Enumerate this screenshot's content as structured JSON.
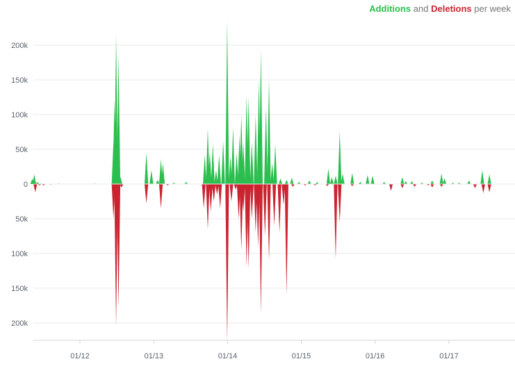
{
  "legend": {
    "additions": "Additions",
    "and": "and",
    "deletions": "Deletions",
    "suffix": "per week"
  },
  "colors": {
    "additions": "#2cbe4e",
    "deletions": "#cb2431"
  },
  "chart_data": {
    "type": "area",
    "title": "",
    "xlabel": "",
    "ylabel": "",
    "ylim": [
      -230000,
      230000
    ],
    "y_ticks": [
      {
        "v": 200000,
        "label": "200k"
      },
      {
        "v": 150000,
        "label": "150k"
      },
      {
        "v": 100000,
        "label": "100k"
      },
      {
        "v": 50000,
        "label": "50k"
      },
      {
        "v": 0,
        "label": "0"
      },
      {
        "v": -50000,
        "label": "50k"
      },
      {
        "v": -100000,
        "label": "100k"
      },
      {
        "v": -150000,
        "label": "150k"
      },
      {
        "v": -200000,
        "label": "200k"
      }
    ],
    "x_ticks": [
      "01/12",
      "01/13",
      "01/14",
      "01/15",
      "01/16",
      "01/17"
    ],
    "x_range": [
      "2011-05",
      "2017-10"
    ],
    "grid": true,
    "legend_position": "top-right",
    "series": [
      {
        "name": "Additions",
        "points": [
          [
            "2011-05-10",
            8000
          ],
          [
            "2011-05-20",
            14000
          ],
          [
            "2011-05-28",
            2000
          ],
          [
            "2011-06-05",
            3000
          ],
          [
            "2011-06-20",
            1000
          ],
          [
            "2011-09-20",
            1000
          ],
          [
            "2012-03-15",
            1000
          ],
          [
            "2012-06-15",
            60000
          ],
          [
            "2012-06-20",
            120000
          ],
          [
            "2012-06-28",
            215000
          ],
          [
            "2012-07-10",
            185000
          ],
          [
            "2012-07-20",
            10000
          ],
          [
            "2012-11-25",
            45000
          ],
          [
            "2012-12-20",
            20000
          ],
          [
            "2013-01-20",
            6000
          ],
          [
            "2013-02-05",
            36000
          ],
          [
            "2013-02-15",
            30000
          ],
          [
            "2013-04-10",
            2000
          ],
          [
            "2013-06-10",
            3000
          ],
          [
            "2013-09-10",
            42000
          ],
          [
            "2013-09-25",
            80000
          ],
          [
            "2013-10-05",
            45000
          ],
          [
            "2013-10-20",
            58000
          ],
          [
            "2013-11-05",
            20000
          ],
          [
            "2013-11-20",
            42000
          ],
          [
            "2013-12-10",
            62000
          ],
          [
            "2013-12-30",
            235000
          ],
          [
            "2014-01-15",
            40000
          ],
          [
            "2014-01-28",
            82000
          ],
          [
            "2014-02-15",
            45000
          ],
          [
            "2014-03-01",
            70000
          ],
          [
            "2014-03-10",
            100000
          ],
          [
            "2014-03-20",
            60000
          ],
          [
            "2014-04-05",
            128000
          ],
          [
            "2014-04-15",
            125000
          ],
          [
            "2014-05-01",
            60000
          ],
          [
            "2014-05-20",
            100000
          ],
          [
            "2014-06-05",
            150000
          ],
          [
            "2014-06-15",
            193000
          ],
          [
            "2014-07-10",
            110000
          ],
          [
            "2014-07-25",
            150000
          ],
          [
            "2014-08-10",
            30000
          ],
          [
            "2014-08-25",
            57000
          ],
          [
            "2014-09-20",
            8000
          ],
          [
            "2014-10-20",
            6000
          ],
          [
            "2014-11-15",
            9000
          ],
          [
            "2014-12-20",
            3000
          ],
          [
            "2015-02-10",
            5000
          ],
          [
            "2015-03-20",
            3000
          ],
          [
            "2015-05-15",
            22000
          ],
          [
            "2015-06-01",
            10000
          ],
          [
            "2015-06-20",
            12000
          ],
          [
            "2015-07-10",
            76000
          ],
          [
            "2015-07-25",
            15000
          ],
          [
            "2015-09-10",
            16000
          ],
          [
            "2015-10-20",
            3000
          ],
          [
            "2015-11-25",
            13000
          ],
          [
            "2015-12-20",
            12000
          ],
          [
            "2016-02-15",
            3000
          ],
          [
            "2016-05-15",
            10000
          ],
          [
            "2016-06-01",
            4000
          ],
          [
            "2016-07-01",
            4000
          ],
          [
            "2016-08-20",
            2000
          ],
          [
            "2016-10-10",
            5000
          ],
          [
            "2016-11-25",
            15000
          ],
          [
            "2016-12-10",
            8000
          ],
          [
            "2017-01-20",
            2000
          ],
          [
            "2017-02-20",
            2000
          ],
          [
            "2017-04-10",
            5000
          ],
          [
            "2017-06-15",
            20000
          ],
          [
            "2017-07-20",
            14000
          ]
        ]
      },
      {
        "name": "Deletions",
        "points": [
          [
            "2011-05-25",
            -12000
          ],
          [
            "2011-06-15",
            -2000
          ],
          [
            "2011-07-05",
            -2000
          ],
          [
            "2011-08-10",
            -1000
          ],
          [
            "2012-06-15",
            -50000
          ],
          [
            "2012-06-28",
            -205000
          ],
          [
            "2012-07-10",
            -178000
          ],
          [
            "2012-07-25",
            -5000
          ],
          [
            "2012-11-25",
            -28000
          ],
          [
            "2013-02-05",
            -35000
          ],
          [
            "2013-03-10",
            -2000
          ],
          [
            "2013-09-05",
            -35000
          ],
          [
            "2013-09-25",
            -65000
          ],
          [
            "2013-10-10",
            -40000
          ],
          [
            "2013-10-25",
            -25000
          ],
          [
            "2013-11-10",
            -15000
          ],
          [
            "2013-11-25",
            -35000
          ],
          [
            "2013-12-30",
            -228000
          ],
          [
            "2014-01-20",
            -25000
          ],
          [
            "2014-02-10",
            -8000
          ],
          [
            "2014-02-25",
            -50000
          ],
          [
            "2014-03-10",
            -95000
          ],
          [
            "2014-03-20",
            -40000
          ],
          [
            "2014-04-05",
            -120000
          ],
          [
            "2014-04-15",
            -122000
          ],
          [
            "2014-05-01",
            -50000
          ],
          [
            "2014-05-20",
            -70000
          ],
          [
            "2014-06-01",
            -90000
          ],
          [
            "2014-06-15",
            -187000
          ],
          [
            "2014-07-05",
            -75000
          ],
          [
            "2014-07-25",
            -110000
          ],
          [
            "2014-08-20",
            -60000
          ],
          [
            "2014-09-15",
            -70000
          ],
          [
            "2014-10-05",
            -30000
          ],
          [
            "2014-10-20",
            -160000
          ],
          [
            "2014-11-20",
            -4000
          ],
          [
            "2015-01-20",
            -2000
          ],
          [
            "2015-03-10",
            -2000
          ],
          [
            "2015-05-10",
            -3000
          ],
          [
            "2015-06-20",
            -108000
          ],
          [
            "2015-07-10",
            -55000
          ],
          [
            "2015-09-10",
            -3000
          ],
          [
            "2016-03-20",
            -10000
          ],
          [
            "2016-05-15",
            -6000
          ],
          [
            "2016-07-15",
            -4000
          ],
          [
            "2016-09-20",
            -2000
          ],
          [
            "2016-10-10",
            -5000
          ],
          [
            "2016-11-25",
            -4000
          ],
          [
            "2017-05-10",
            -6000
          ],
          [
            "2017-06-20",
            -13000
          ],
          [
            "2017-07-20",
            -12000
          ]
        ]
      }
    ]
  }
}
